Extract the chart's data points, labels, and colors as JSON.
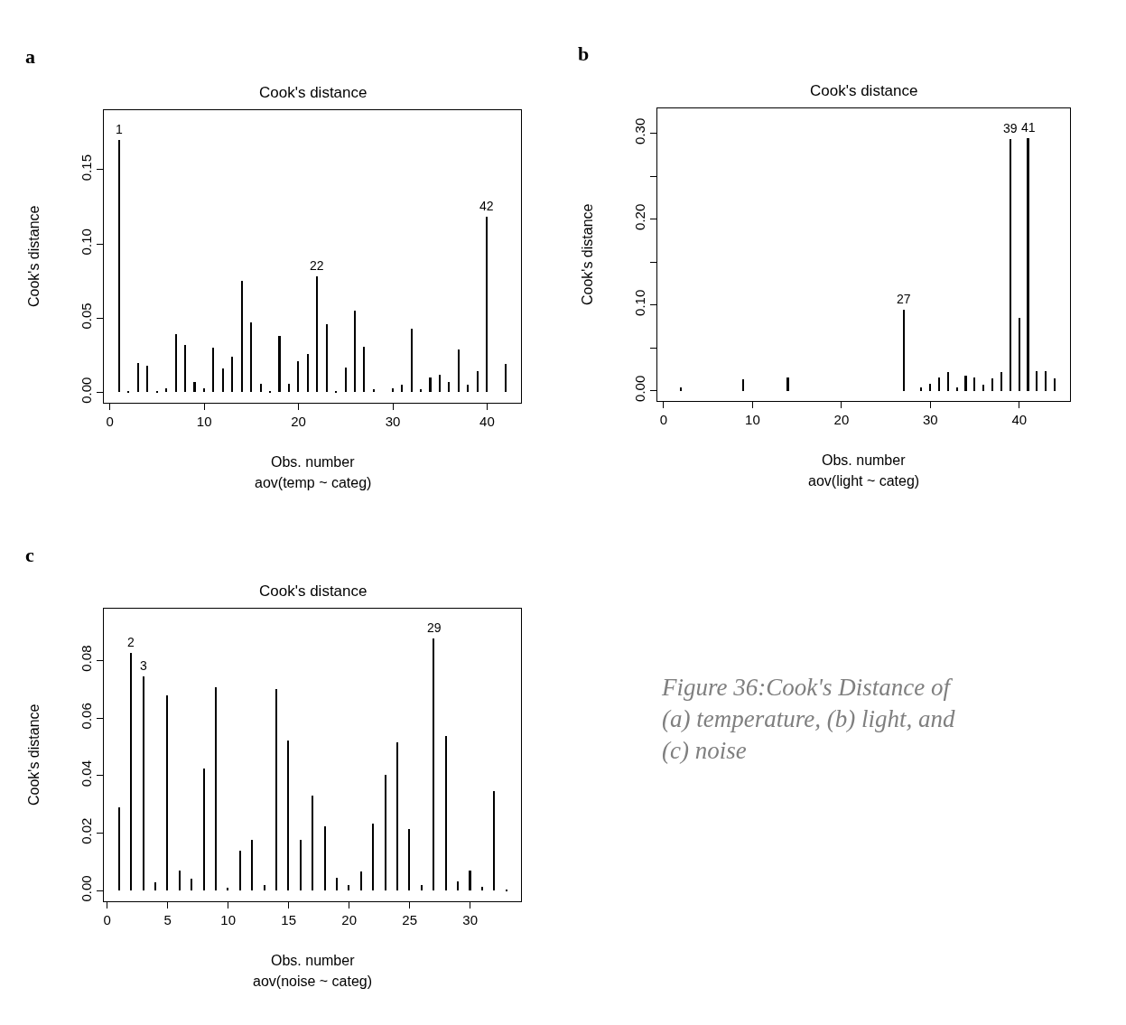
{
  "chart_data": [
    {
      "type": "bar",
      "title": "Cook's distance",
      "xlabel": "Obs. number",
      "subtitle": "aov(temp ~ categ)",
      "ylabel": "Cook's distance",
      "color": "#000000",
      "x": [
        1,
        2,
        3,
        4,
        5,
        6,
        7,
        8,
        9,
        10,
        11,
        12,
        13,
        14,
        15,
        16,
        17,
        18,
        19,
        20,
        21,
        22,
        23,
        24,
        25,
        26,
        27,
        28,
        29,
        30,
        31,
        32,
        33,
        34,
        35,
        36,
        37,
        38,
        39,
        40,
        41,
        42
      ],
      "values": [
        0.17,
        0.001,
        0.02,
        0.018,
        0.001,
        0.003,
        0.039,
        0.032,
        0.007,
        0.003,
        0.03,
        0.016,
        0.024,
        0.075,
        0.047,
        0.006,
        0.001,
        0.038,
        0.006,
        0.021,
        0.026,
        0.078,
        0.046,
        0.001,
        0.017,
        0.055,
        0.031,
        0.002,
        0.0,
        0.003,
        0.005,
        0.043,
        0.002,
        0.01,
        0.012,
        0.007,
        0.029,
        0.005,
        0.014,
        0.118,
        0.0,
        0.019
      ],
      "xlim": [
        -0.65,
        43.6
      ],
      "ylim": [
        -0.007,
        0.19
      ],
      "xticks": [
        0,
        10,
        20,
        30,
        40
      ],
      "yticks": [
        {
          "value": 0,
          "label": "0.00"
        },
        {
          "value": 0.05,
          "label": "0.05"
        },
        {
          "value": 0.1,
          "label": "0.10"
        },
        {
          "value": 0.15,
          "label": "0.15"
        }
      ],
      "annotations": [
        "a",
        {
          "text": "1",
          "x": 1,
          "y": 0.17
        },
        {
          "text": "22",
          "x": 22,
          "y": 0.078
        },
        {
          "text": "42",
          "x": 40,
          "y": 0.118
        }
      ]
    },
    {
      "type": "bar",
      "title": "Cook's distance",
      "xlabel": "Obs. number",
      "subtitle": "aov(light ~ categ)",
      "ylabel": "Cook's distance",
      "color": "#000000",
      "x": [
        1,
        2,
        3,
        4,
        5,
        6,
        7,
        8,
        9,
        10,
        11,
        12,
        13,
        14,
        15,
        16,
        17,
        18,
        19,
        20,
        21,
        22,
        23,
        24,
        25,
        26,
        27,
        28,
        29,
        30,
        31,
        32,
        33,
        34,
        35,
        36,
        37,
        38,
        39,
        40,
        41,
        42,
        43,
        44
      ],
      "values": [
        0.0,
        0.004,
        0.0,
        0.0,
        0.0,
        0.0,
        0.0,
        0.0,
        0.013,
        0.0,
        0.0,
        0.0,
        0.0,
        0.015,
        0.0,
        0.0,
        0.0,
        0.0,
        0.0,
        0.0,
        0.0,
        0.0,
        0.0,
        0.0,
        0.0,
        0.0,
        0.094,
        0.0,
        0.004,
        0.008,
        0.015,
        0.022,
        0.004,
        0.018,
        0.015,
        0.007,
        0.014,
        0.022,
        0.293,
        0.085,
        0.294,
        0.023,
        0.023,
        0.014
      ],
      "xlim": [
        -0.7,
        45.7
      ],
      "ylim": [
        -0.012,
        0.329
      ],
      "xticks": [
        0,
        10,
        20,
        30,
        40
      ],
      "yticks": [
        {
          "value": 0,
          "label": "0.00"
        },
        {
          "value": 0.05,
          "label": null
        },
        {
          "value": 0.1,
          "label": "0.10"
        },
        {
          "value": 0.15,
          "label": null
        },
        {
          "value": 0.2,
          "label": "0.20"
        },
        {
          "value": 0.25,
          "label": null
        },
        {
          "value": 0.3,
          "label": "0.30"
        }
      ],
      "annotations": [
        "b",
        {
          "text": "27",
          "x": 27,
          "y": 0.094
        },
        {
          "text": "39",
          "x": 39,
          "y": 0.293
        },
        {
          "text": "41",
          "x": 41,
          "y": 0.294
        }
      ]
    },
    {
      "type": "bar",
      "title": "Cook's distance",
      "xlabel": "Obs. number",
      "subtitle": "aov(noise ~ categ)",
      "ylabel": "Cook's distance",
      "color": "#000000",
      "x": [
        1,
        2,
        3,
        4,
        5,
        6,
        7,
        8,
        9,
        10,
        11,
        12,
        13,
        14,
        15,
        16,
        17,
        18,
        19,
        20,
        21,
        22,
        23,
        24,
        25,
        26,
        27,
        28,
        29,
        30,
        31,
        32,
        33
      ],
      "values": [
        0.029,
        0.0825,
        0.0744,
        0.003,
        0.068,
        0.007,
        0.004,
        0.0426,
        0.0706,
        0.001,
        0.014,
        0.0175,
        0.002,
        0.07,
        0.0522,
        0.0176,
        0.033,
        0.0223,
        0.0045,
        0.002,
        0.0068,
        0.0232,
        0.0404,
        0.0515,
        0.0215,
        0.002,
        0.0877,
        0.0537,
        0.0033,
        0.0069,
        0.0012,
        0.0347,
        0.0002
      ],
      "xlim": [
        -0.27,
        34.2
      ],
      "ylim": [
        -0.0037,
        0.098
      ],
      "xticks": [
        0,
        5,
        10,
        15,
        20,
        25,
        30
      ],
      "yticks": [
        {
          "value": 0,
          "label": "0.00"
        },
        {
          "value": 0.02,
          "label": "0.02"
        },
        {
          "value": 0.04,
          "label": "0.04"
        },
        {
          "value": 0.06,
          "label": "0.06"
        },
        {
          "value": 0.08,
          "label": "0.08"
        }
      ],
      "annotations": [
        "c",
        {
          "text": "2",
          "x": 2,
          "y": 0.0825
        },
        {
          "text": "3",
          "x": 3,
          "y": 0.0744
        },
        {
          "text": "29",
          "x": 27,
          "y": 0.0877
        },
        "Figure 36:Cook's Distance of\n(a) temperature, (b) light, and\n(c) noise"
      ]
    }
  ]
}
